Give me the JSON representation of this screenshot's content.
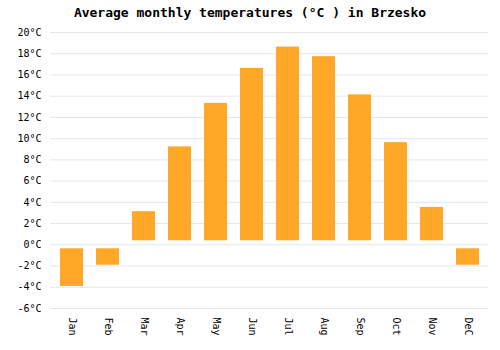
{
  "chart_data": {
    "type": "bar",
    "title": "Average monthly temperatures (°C ) in Brzesko",
    "categories": [
      "Jan",
      "Feb",
      "Mar",
      "Apr",
      "May",
      "Jun",
      "Jul",
      "Aug",
      "Sep",
      "Oct",
      "Nov",
      "DeC"
    ],
    "values": [
      -4.3,
      -2.3,
      3.5,
      9.6,
      13.7,
      17.0,
      19.0,
      18.1,
      14.5,
      10.0,
      3.9,
      -2.3
    ],
    "color": "#FFA726",
    "ylim": [
      -6,
      20
    ],
    "yticks": [
      {
        "value": -6,
        "label": "-6°C"
      },
      {
        "value": -4,
        "label": "-4°C"
      },
      {
        "value": -2,
        "label": "-2°C"
      },
      {
        "value": 0,
        "label": "0°C"
      },
      {
        "value": 2,
        "label": "2°C"
      },
      {
        "value": 4,
        "label": "4°C"
      },
      {
        "value": 6,
        "label": "6°C"
      },
      {
        "value": 8,
        "label": "8°C"
      },
      {
        "value": 10,
        "label": "10°C"
      },
      {
        "value": 12,
        "label": "12°C"
      },
      {
        "value": 14,
        "label": "14°C"
      },
      {
        "value": 16,
        "label": "16°C"
      },
      {
        "value": 18,
        "label": "18°C"
      },
      {
        "value": 20,
        "label": "20°C"
      }
    ],
    "grid": true
  }
}
